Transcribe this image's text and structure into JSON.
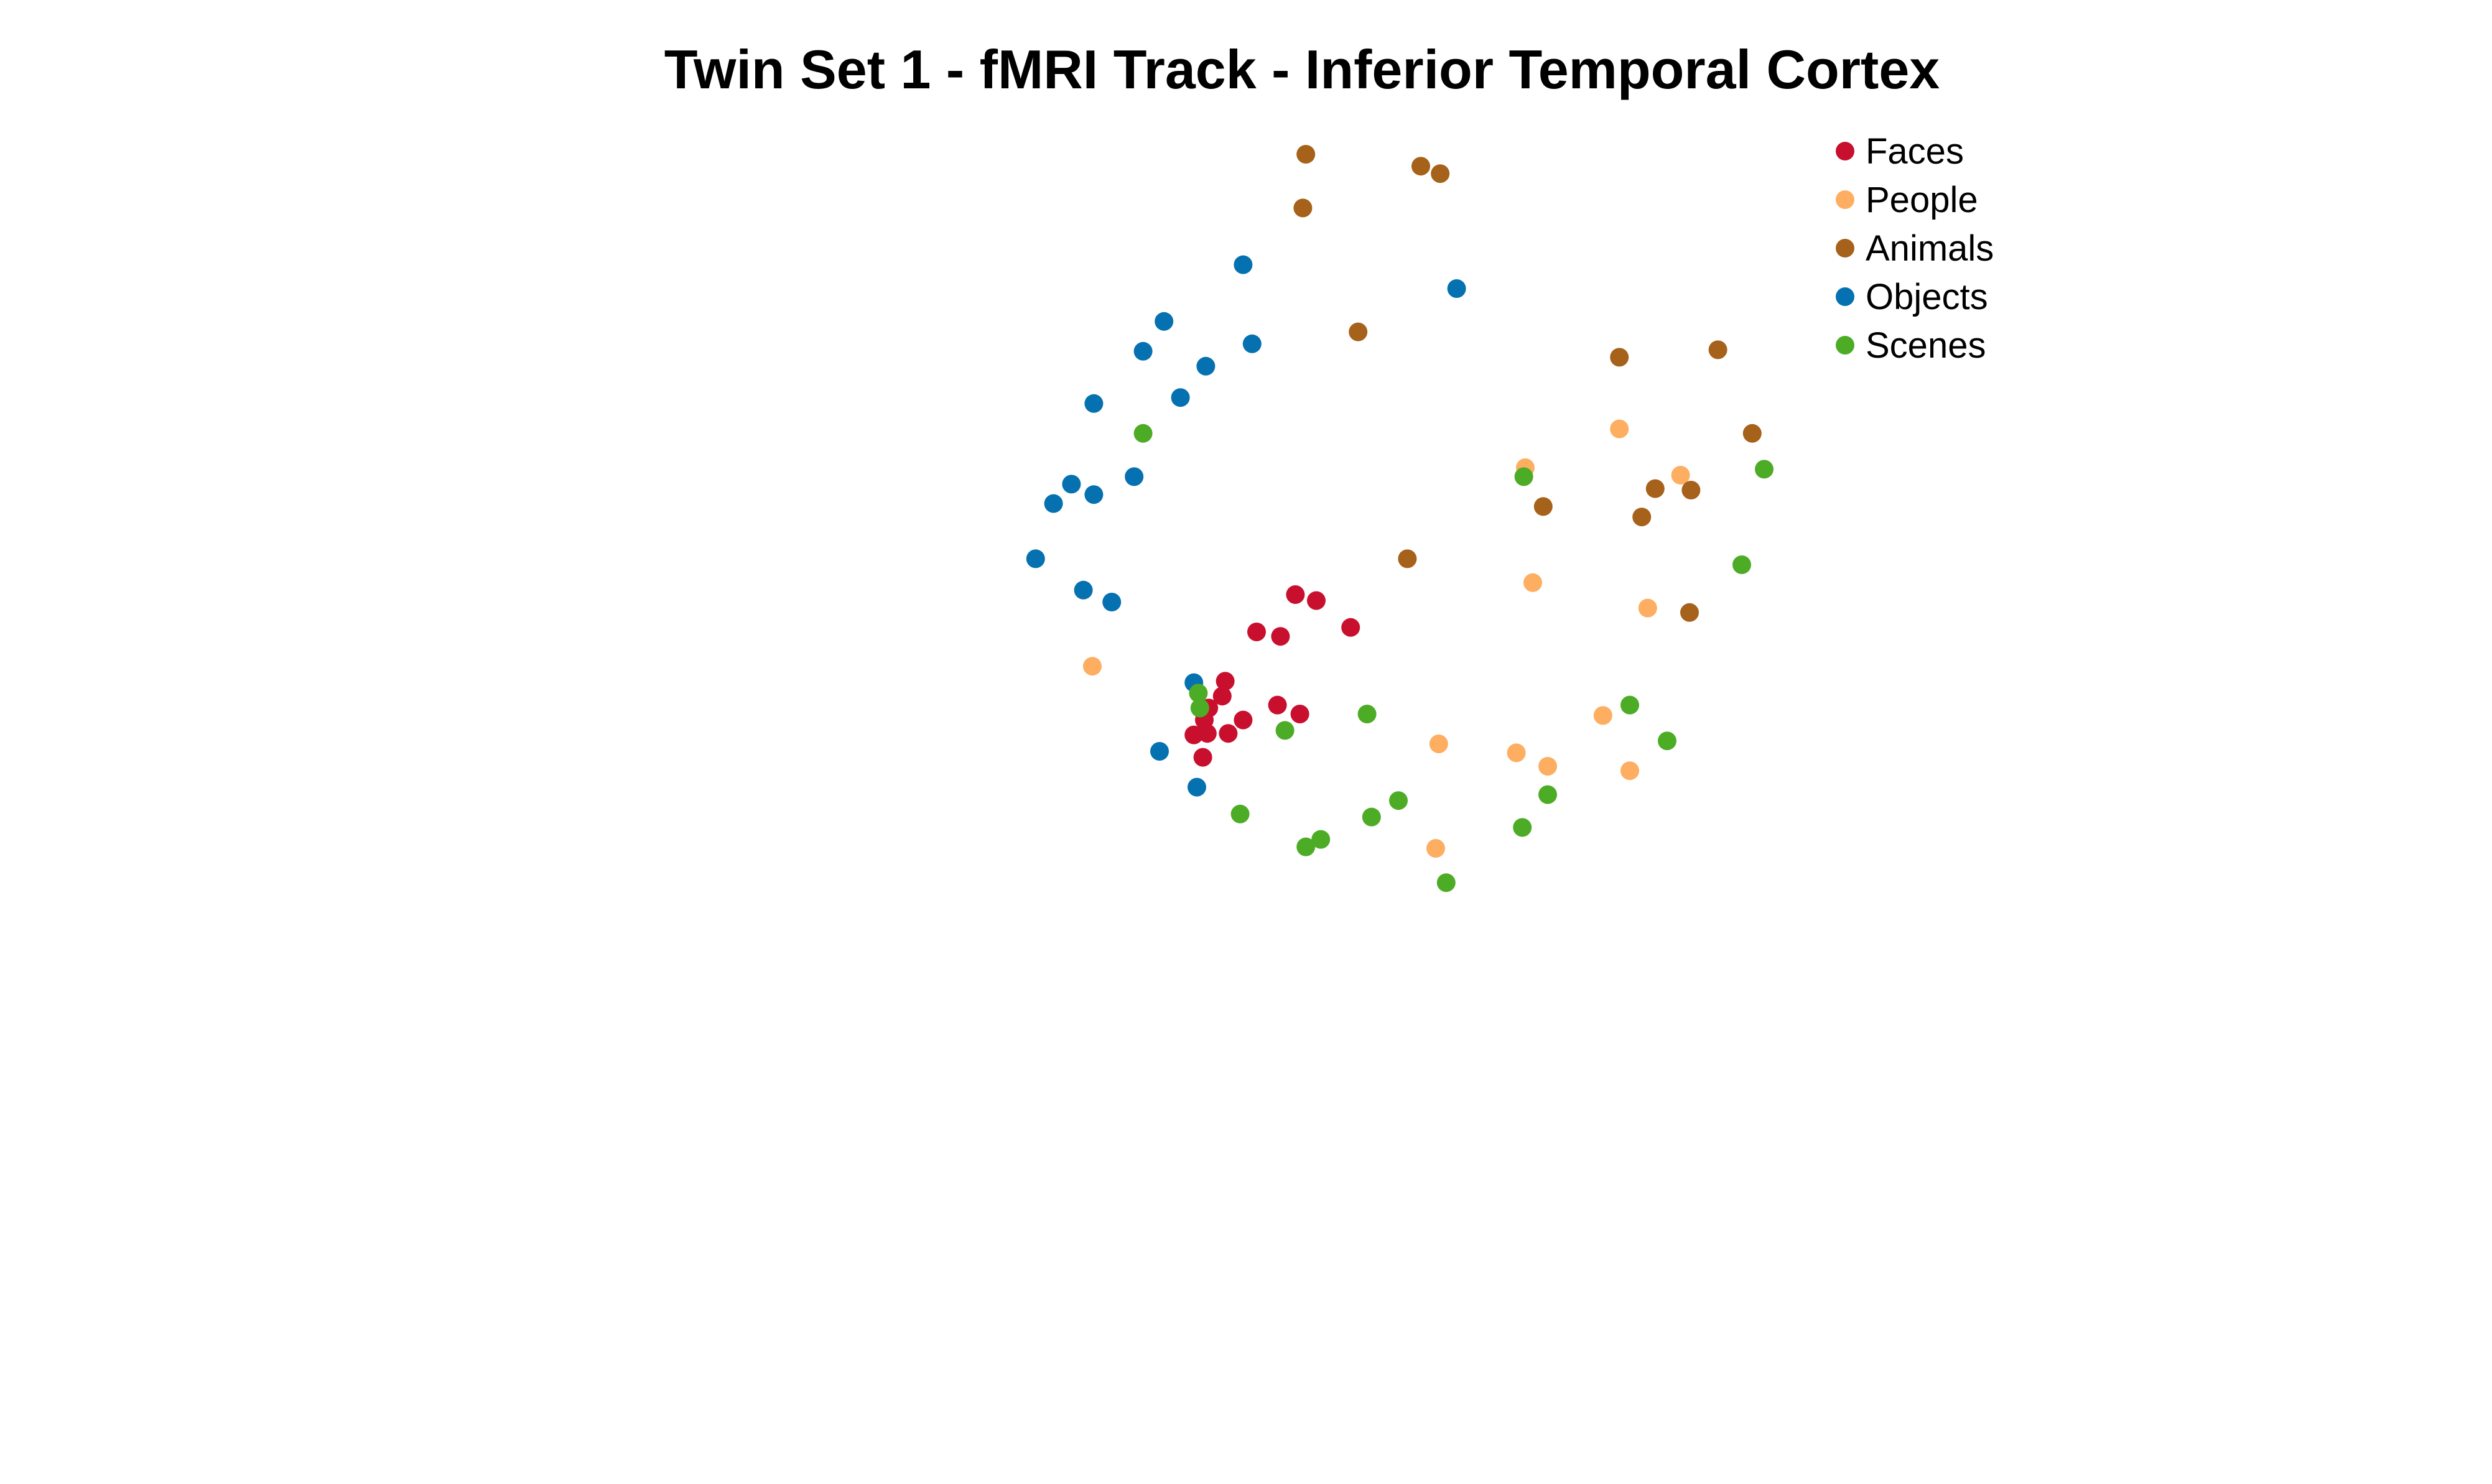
{
  "chart_data": {
    "type": "scatter",
    "title": "Twin Set 1 - fMRI Track - Inferior Temporal Cortex",
    "xlabel": "",
    "ylabel": "",
    "axes_visible": false,
    "grid": false,
    "xlim": [
      0,
      1000
    ],
    "ylim": [
      0,
      600
    ],
    "legend": {
      "placement": "top-right"
    },
    "series": [
      {
        "name": "Faces",
        "color": "#C8102E",
        "points": [
          [
            451,
            340
          ],
          [
            465,
            344
          ],
          [
            425,
            365
          ],
          [
            441,
            368
          ],
          [
            488,
            362
          ],
          [
            404,
            398
          ],
          [
            402,
            408
          ],
          [
            393,
            416
          ],
          [
            390,
            424
          ],
          [
            392,
            433
          ],
          [
            416,
            424
          ],
          [
            439,
            414
          ],
          [
            454,
            420
          ],
          [
            406,
            433
          ],
          [
            383,
            434
          ],
          [
            389,
            449
          ]
        ]
      },
      {
        "name": "People",
        "color": "#FDAE61",
        "points": [
          [
            668,
            229
          ],
          [
            605,
            255
          ],
          [
            709,
            260
          ],
          [
            687,
            349
          ],
          [
            610,
            332
          ],
          [
            315,
            388
          ],
          [
            657,
            421
          ],
          [
            547,
            440
          ],
          [
            599,
            446
          ],
          [
            620,
            455
          ],
          [
            675,
            458
          ],
          [
            545,
            510
          ]
        ]
      },
      {
        "name": "Animals",
        "color": "#A6611A",
        "points": [
          [
            458,
            45
          ],
          [
            535,
            53
          ],
          [
            548,
            58
          ],
          [
            456,
            81
          ],
          [
            493,
            164
          ],
          [
            668,
            181
          ],
          [
            734,
            176
          ],
          [
            757,
            232
          ],
          [
            692,
            269
          ],
          [
            716,
            270
          ],
          [
            617,
            281
          ],
          [
            683,
            288
          ],
          [
            526,
            316
          ],
          [
            715,
            352
          ]
        ]
      },
      {
        "name": "Objects",
        "color": "#0571B0",
        "points": [
          [
            416,
            119
          ],
          [
            559,
            135
          ],
          [
            363,
            157
          ],
          [
            422,
            172
          ],
          [
            349,
            177
          ],
          [
            391,
            187
          ],
          [
            316,
            212
          ],
          [
            374,
            208
          ],
          [
            343,
            261
          ],
          [
            301,
            266
          ],
          [
            316,
            273
          ],
          [
            289,
            279
          ],
          [
            277,
            316
          ],
          [
            309,
            337
          ],
          [
            328,
            345
          ],
          [
            383,
            399
          ],
          [
            360,
            445
          ],
          [
            385,
            469
          ]
        ]
      },
      {
        "name": "Scenes",
        "color": "#4DAC26",
        "points": [
          [
            349,
            232
          ],
          [
            604,
            261
          ],
          [
            765,
            256
          ],
          [
            750,
            320
          ],
          [
            386,
            406
          ],
          [
            387,
            416
          ],
          [
            444,
            431
          ],
          [
            499,
            420
          ],
          [
            675,
            414
          ],
          [
            700,
            438
          ],
          [
            620,
            474
          ],
          [
            520,
            478
          ],
          [
            502,
            489
          ],
          [
            414,
            487
          ],
          [
            603,
            496
          ],
          [
            468,
            504
          ],
          [
            458,
            509
          ],
          [
            552,
            533
          ]
        ]
      }
    ]
  }
}
